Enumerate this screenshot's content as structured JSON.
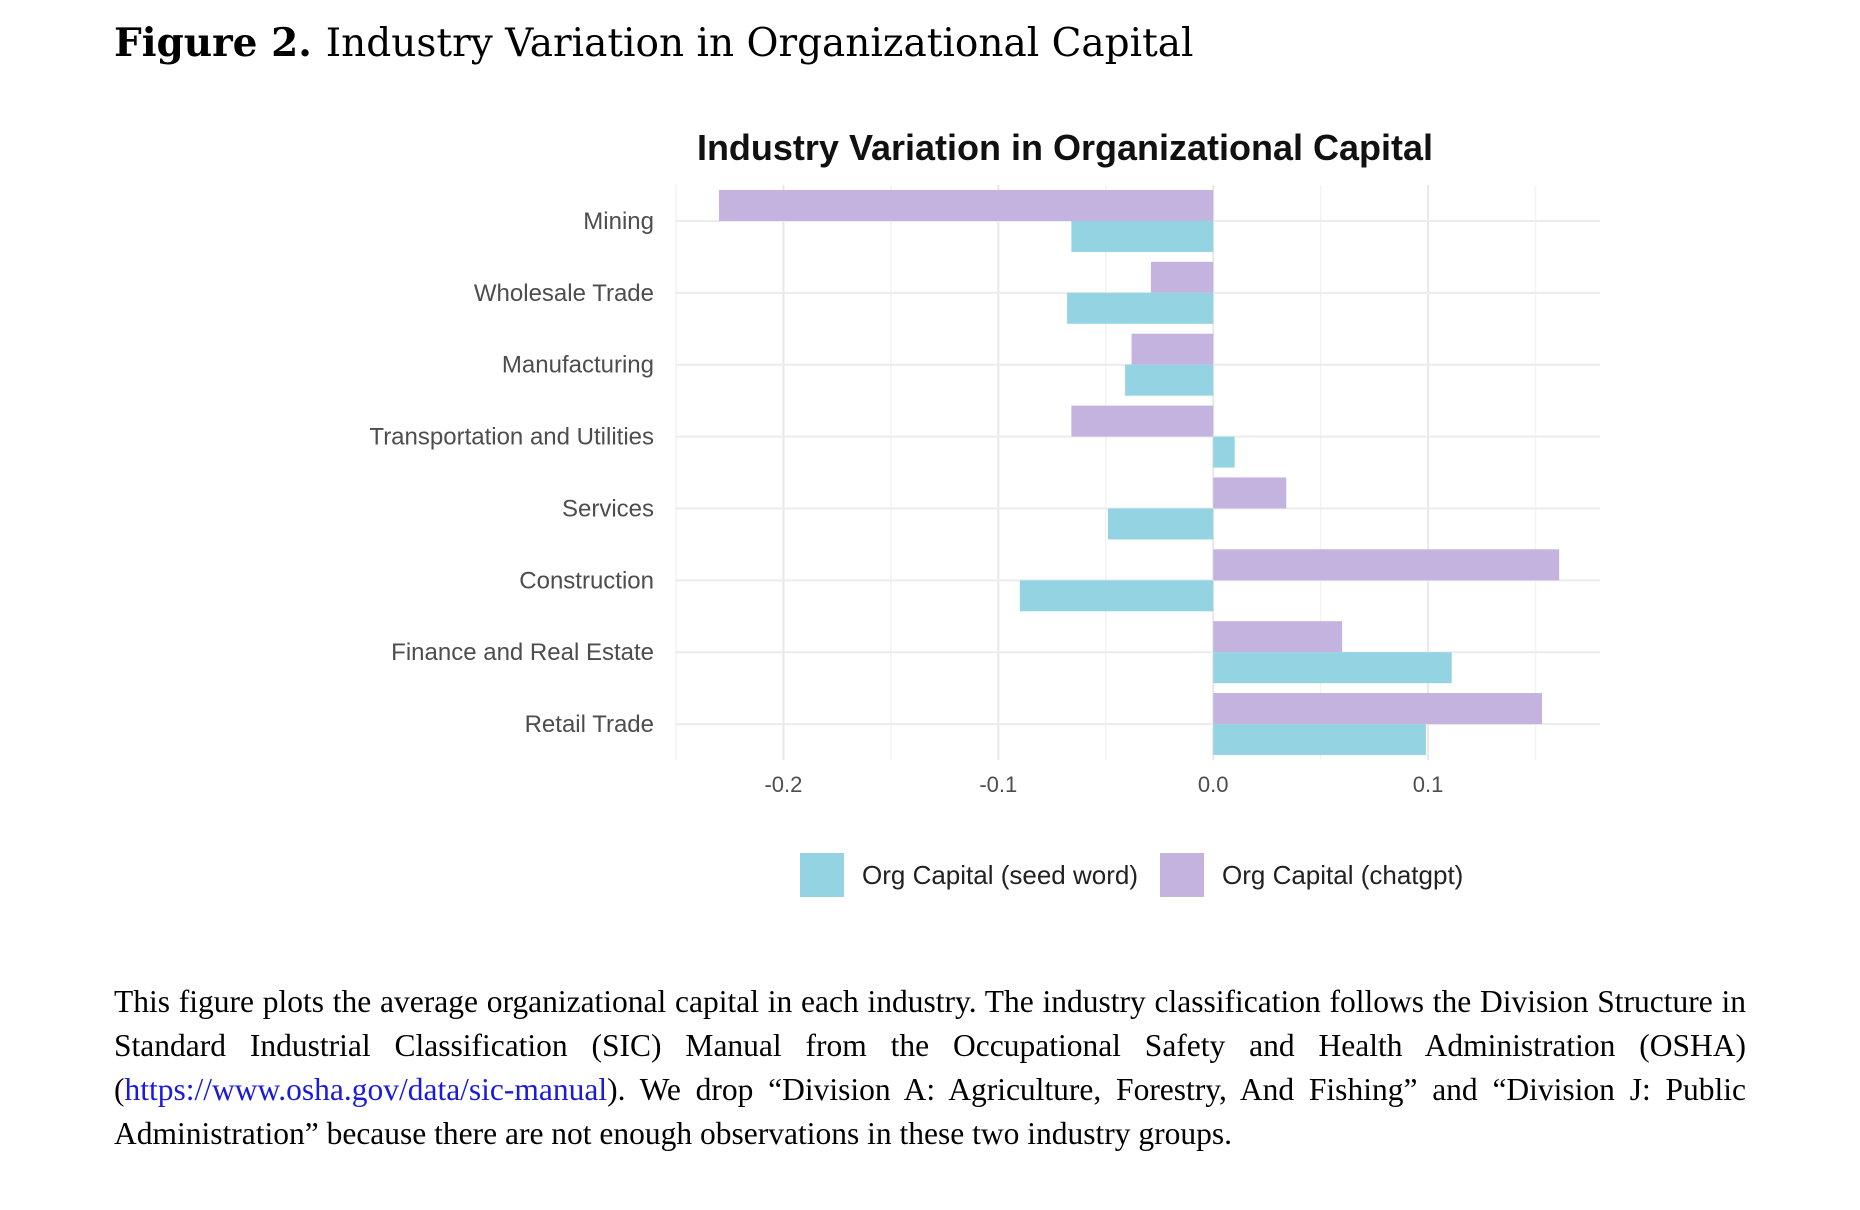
{
  "figure": {
    "label": "Figure 2.",
    "title": "Industry Variation in Organizational Capital"
  },
  "chart_data": {
    "type": "bar",
    "orientation": "horizontal",
    "title": "Industry Variation in Organizational Capital",
    "categories": [
      "Mining",
      "Wholesale Trade",
      "Manufacturing",
      "Transportation and Utilities",
      "Services",
      "Construction",
      "Finance and Real Estate",
      "Retail Trade"
    ],
    "series": [
      {
        "name": "Org Capital (chatgpt)",
        "color": "#c3b3de",
        "values": [
          -0.23,
          -0.029,
          -0.038,
          -0.066,
          0.034,
          0.161,
          0.06,
          0.153
        ]
      },
      {
        "name": "Org Capital (seed word)",
        "color": "#94d4e2",
        "values": [
          -0.066,
          -0.068,
          -0.041,
          0.01,
          -0.049,
          -0.09,
          0.111,
          0.099
        ]
      }
    ],
    "xlim": [
      -0.25,
      0.18
    ],
    "xticks": [
      -0.2,
      -0.1,
      0.0,
      0.1
    ],
    "xtick_labels": [
      "-0.2",
      "-0.1",
      "0.0",
      "0.1"
    ],
    "grid": true,
    "legend": {
      "position": "bottom",
      "entries": [
        {
          "label": "Org Capital (seed word)",
          "color": "#94d4e2"
        },
        {
          "label": "Org Capital (chatgpt)",
          "color": "#c3b3de"
        }
      ]
    }
  },
  "caption": {
    "text_before": "This figure plots the average organizational capital in each industry.  The industry classification follows the Division Structure in Standard Industrial Classification (SIC) Manual from the Occupational Safety and Health Administration (OSHA) (",
    "link": "https://www.osha.gov/data/sic-manual",
    "text_after": "). We drop “Division A: Agri­culture, Forestry, And Fishing” and “Division J: Public Administration” because there are not enough observations in these two industry groups."
  }
}
